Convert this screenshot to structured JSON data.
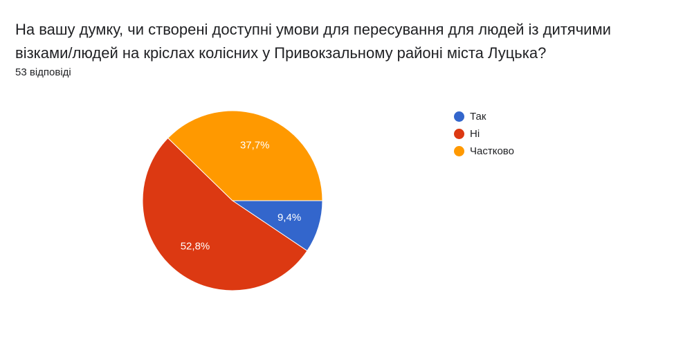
{
  "header": {
    "title": "На вашу думку, чи створені доступні умови для пересування для людей із дитячими візками/людей на кріслах колісних у Привокзальному районі міста Луцька?",
    "response_count": "53 відповіді"
  },
  "chart_data": {
    "type": "pie",
    "title": "",
    "legend_position": "right",
    "slices": [
      {
        "label": "Так",
        "value": 9.4,
        "display": "9,4%",
        "color": "#3366cc"
      },
      {
        "label": "Ні",
        "value": 52.8,
        "display": "52,8%",
        "color": "#dc3912"
      },
      {
        "label": "Частково",
        "value": 37.7,
        "display": "37,7%",
        "color": "#ff9900"
      }
    ]
  }
}
